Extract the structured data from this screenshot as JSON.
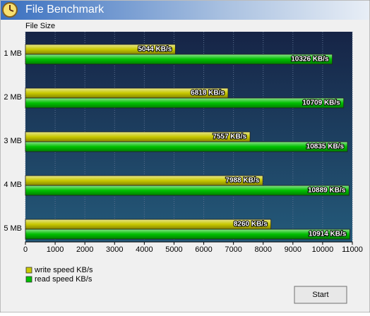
{
  "window": {
    "title": "File Benchmark",
    "button": "Start"
  },
  "chart_data": {
    "type": "bar",
    "orientation": "horizontal",
    "y_label": "File Size",
    "categories": [
      "1 MB",
      "2 MB",
      "3 MB",
      "4 MB",
      "5 MB"
    ],
    "series": [
      {
        "name": "write speed KB/s",
        "color": "#c8c800",
        "values": [
          5044,
          6818,
          7557,
          7988,
          8260
        ],
        "value_labels": [
          "5044 KB/s",
          "6818 KB/s",
          "7557 KB/s",
          "7988 KB/s",
          "8260 KB/s"
        ]
      },
      {
        "name": "read speed KB/s",
        "color": "#00c000",
        "values": [
          10326,
          10709,
          10835,
          10889,
          10914
        ],
        "value_labels": [
          "10326 KB/s",
          "10709 KB/s",
          "10835 KB/s",
          "10889 KB/s",
          "10914 KB/s"
        ]
      }
    ],
    "xlim": [
      0,
      11000
    ],
    "xticks": [
      0,
      1000,
      2000,
      3000,
      4000,
      5000,
      6000,
      7000,
      8000,
      9000,
      10000,
      11000
    ]
  }
}
